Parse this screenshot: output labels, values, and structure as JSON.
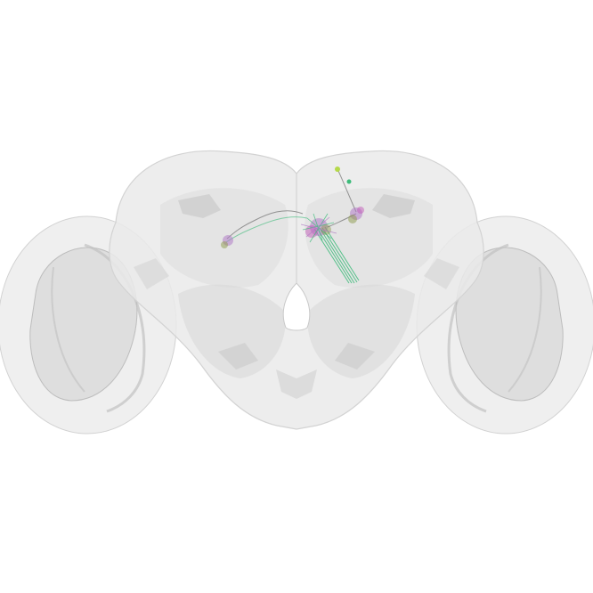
{
  "scene": {
    "background": "#ffffff",
    "mesh_fill": "#d9d9d9",
    "mesh_edge": "#c4c4c4",
    "neuron_colors": {
      "purple": "#b07cc6",
      "magenta": "#c25ab8",
      "green": "#3dbb7a",
      "gray": "#6e6e6e",
      "lime": "#b5d94a",
      "olive": "#8c9a4a"
    }
  }
}
